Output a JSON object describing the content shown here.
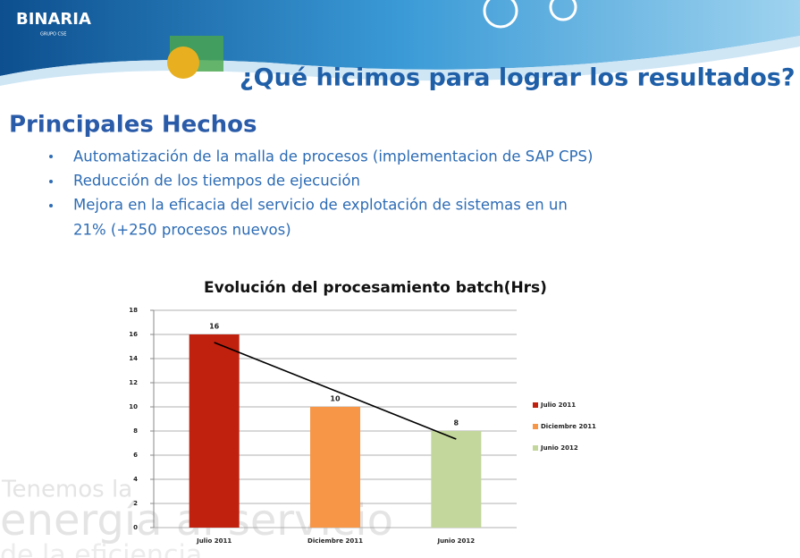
{
  "logo": {
    "name": "BINARIA",
    "subtitle": "GRUPO CSE"
  },
  "header": {
    "title": "¿Qué hicimos para lograr los resultados?"
  },
  "section": {
    "title": "Principales Hechos",
    "bullets": [
      "Automatización de la malla de procesos (implementacion de SAP CPS)",
      "Reducción de los tiempos de ejecución",
      "Mejora en la eficacia del servicio de explotación de sistemas en un",
      "21% (+250 procesos nuevos)"
    ]
  },
  "watermark": [
    "Tenemos la",
    "energía al servicio",
    "de la eficiencia"
  ],
  "chart_data": {
    "type": "bar",
    "title": "Evolución del procesamiento batch(Hrs)",
    "categories": [
      "Julio 2011",
      "Diciembre 2011",
      "Junio 2012"
    ],
    "values": [
      16,
      10,
      8
    ],
    "colors": [
      "#c0200e",
      "#f79646",
      "#c3d69b"
    ],
    "ylim": [
      0,
      18
    ],
    "yticks": [
      0,
      2,
      4,
      6,
      8,
      10,
      12,
      14,
      16,
      18
    ],
    "grid": true,
    "legend": "right",
    "data_labels": true,
    "trendline": "linear"
  }
}
